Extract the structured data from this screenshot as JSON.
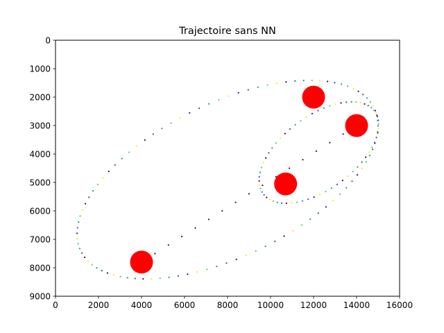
{
  "chart_data": {
    "type": "scatter",
    "title": "Trajectoire sans NN",
    "xlabel": "",
    "ylabel": "",
    "xlim": [
      0,
      16000
    ],
    "ylim": [
      9000,
      0
    ],
    "y_inverted": true,
    "x_ticks": [
      "0",
      "2000",
      "4000",
      "6000",
      "8000",
      "10000",
      "12000",
      "14000",
      "16000"
    ],
    "y_ticks": [
      "0",
      "1000",
      "2000",
      "3000",
      "4000",
      "5000",
      "6000",
      "7000",
      "8000",
      "9000"
    ],
    "grid": false,
    "colormap": [
      "#440154",
      "#3b528b",
      "#21918c",
      "#5ec962",
      "#fde725"
    ],
    "marker_color": "#ff0000",
    "trajectories": [
      {
        "kind": "ellipse",
        "center": [
          8000,
          4900
        ],
        "semi_axes": [
          7300,
          2800
        ],
        "rotation_deg": -18,
        "points": 96
      },
      {
        "kind": "ellipse",
        "center": [
          12250,
          3950
        ],
        "semi_axes": [
          3000,
          1380
        ],
        "rotation_deg": -25,
        "points": 64
      },
      {
        "kind": "line",
        "from": [
          4000,
          7800
        ],
        "to": [
          14000,
          3000
        ],
        "points": 17
      }
    ],
    "markers": [
      {
        "x": 12000,
        "y": 2000
      },
      {
        "x": 14000,
        "y": 3000
      },
      {
        "x": 10700,
        "y": 5050
      },
      {
        "x": 4000,
        "y": 7800
      }
    ]
  }
}
